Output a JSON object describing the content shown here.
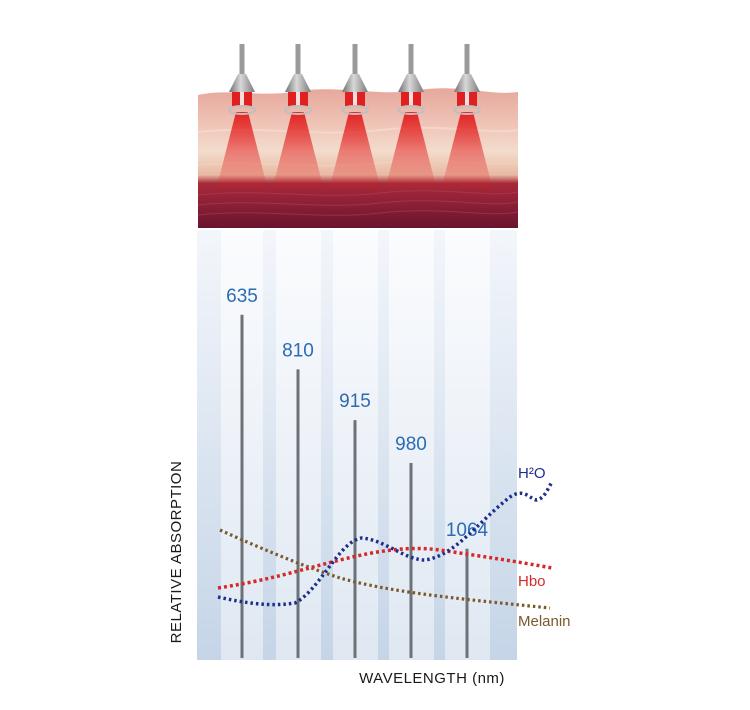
{
  "wavelengths": [
    {
      "label": "635",
      "height": 0.88
    },
    {
      "label": "810",
      "height": 0.74
    },
    {
      "label": "915",
      "height": 0.61
    },
    {
      "label": "980",
      "height": 0.5
    },
    {
      "label": "1064",
      "height": 0.28
    }
  ],
  "curves": {
    "h2o": {
      "label": "H²O",
      "color": "#1f2e8c"
    },
    "hbo": {
      "label": "Hbo",
      "color": "#d62828"
    },
    "melanin": {
      "label": "Melanin",
      "color": "#7a5a2c"
    }
  },
  "axes": {
    "y_label": "RELATIVE ABSORPTION",
    "x_label": "WAVELENGTH (nm)"
  },
  "colors": {
    "beam": "#e02020",
    "applicator": "#9a9a9a",
    "skin_top": "#e9a9a0",
    "dermis": "#8a1c35"
  }
}
